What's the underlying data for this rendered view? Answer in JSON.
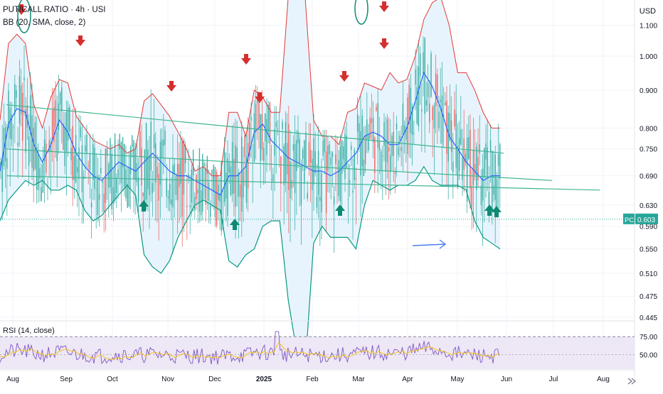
{
  "header": {
    "symbol": "PUT/CALL RATIO",
    "interval": "4h",
    "source": "USI",
    "separator": "·",
    "indicator": "BB (20, SMA, close, 2)",
    "currency": "USD"
  },
  "rsi": {
    "label": "RSI (14, close)",
    "levels": [
      "75.00",
      "50.00"
    ]
  },
  "price_tag": {
    "symbol": "PC",
    "value": "0.603"
  },
  "colors": {
    "candle_up": "#26a69a",
    "candle_down": "#ef5350",
    "bb_upper": "#e53935",
    "bb_basis": "#2962ff",
    "bb_lower": "#089981",
    "bb_fill": "#e3f2fd",
    "trendline": "#3fb58f",
    "arrow_down": "#d32f2f",
    "arrow_up": "#0d8a72",
    "rsi_line": "#7e57c2",
    "rsi_ma": "#f5c518",
    "rsi_band": "#ede7f6",
    "blue_arrow": "#4a7df0"
  },
  "chart_data": {
    "type": "candlestick",
    "title": "PUT/CALL RATIO · 4h · USI",
    "y_scale": "log",
    "ylim": [
      0.44,
      1.19
    ],
    "y_ticks": [
      "1.100",
      "1.000",
      "0.900",
      "0.800",
      "0.750",
      "0.690",
      "0.630",
      "0.590",
      "0.550",
      "0.510",
      "0.475",
      "0.445"
    ],
    "x_ticks": [
      "Aug",
      "Sep",
      "Oct",
      "Nov",
      "Dec",
      "2025",
      "Feb",
      "Mar",
      "Apr",
      "May",
      "Jun",
      "Jul",
      "Aug"
    ],
    "last_value": 0.603,
    "bb_upper": [
      0.82,
      1.04,
      1.07,
      1.04,
      0.86,
      0.8,
      0.88,
      0.93,
      0.92,
      0.83,
      0.8,
      0.77,
      0.76,
      0.75,
      0.76,
      0.74,
      0.75,
      0.87,
      0.89,
      0.86,
      0.83,
      0.79,
      0.75,
      0.7,
      0.71,
      0.69,
      0.69,
      0.84,
      0.84,
      0.78,
      0.9,
      0.88,
      0.84,
      0.84,
      1.2,
      1.2,
      1.2,
      0.82,
      0.78,
      0.78,
      0.76,
      0.84,
      0.85,
      0.92,
      0.91,
      0.9,
      0.95,
      0.92,
      0.93,
      1.0,
      1.12,
      1.18,
      1.2,
      1.1,
      0.95,
      0.95,
      0.9,
      0.84,
      0.8,
      0.8
    ],
    "bb_basis": [
      0.7,
      0.81,
      0.85,
      0.84,
      0.76,
      0.72,
      0.76,
      0.82,
      0.79,
      0.74,
      0.71,
      0.69,
      0.68,
      0.7,
      0.72,
      0.71,
      0.7,
      0.72,
      0.74,
      0.72,
      0.7,
      0.69,
      0.69,
      0.68,
      0.67,
      0.66,
      0.65,
      0.69,
      0.69,
      0.71,
      0.79,
      0.81,
      0.77,
      0.75,
      0.73,
      0.72,
      0.71,
      0.7,
      0.7,
      0.69,
      0.7,
      0.72,
      0.74,
      0.78,
      0.79,
      0.78,
      0.76,
      0.76,
      0.8,
      0.87,
      0.95,
      0.91,
      0.85,
      0.78,
      0.75,
      0.72,
      0.7,
      0.68,
      0.69,
      0.69
    ],
    "bb_lower": [
      0.6,
      0.64,
      0.66,
      0.68,
      0.67,
      0.68,
      0.66,
      0.66,
      0.67,
      0.66,
      0.62,
      0.6,
      0.61,
      0.63,
      0.65,
      0.67,
      0.65,
      0.54,
      0.52,
      0.51,
      0.53,
      0.57,
      0.6,
      0.63,
      0.64,
      0.63,
      0.62,
      0.53,
      0.52,
      0.54,
      0.55,
      0.59,
      0.6,
      0.6,
      0.47,
      0.4,
      0.38,
      0.56,
      0.59,
      0.57,
      0.57,
      0.57,
      0.55,
      0.63,
      0.68,
      0.67,
      0.66,
      0.67,
      0.67,
      0.68,
      0.71,
      0.68,
      0.67,
      0.67,
      0.67,
      0.66,
      0.6,
      0.57,
      0.56,
      0.55
    ],
    "trendlines": [
      {
        "x1": "2024-07-25",
        "y1": 0.86,
        "x2": "2025-05-31",
        "y2": 0.74
      },
      {
        "x1": "2024-07-25",
        "y1": 0.69,
        "x2": "2025-07-30",
        "y2": 0.66
      },
      {
        "x1": "2024-07-25",
        "y1": 0.75,
        "x2": "2025-06-30",
        "y2": 0.68
      }
    ],
    "rsi": {
      "ylim": [
        30,
        85
      ],
      "levels": [
        75,
        50
      ]
    }
  }
}
